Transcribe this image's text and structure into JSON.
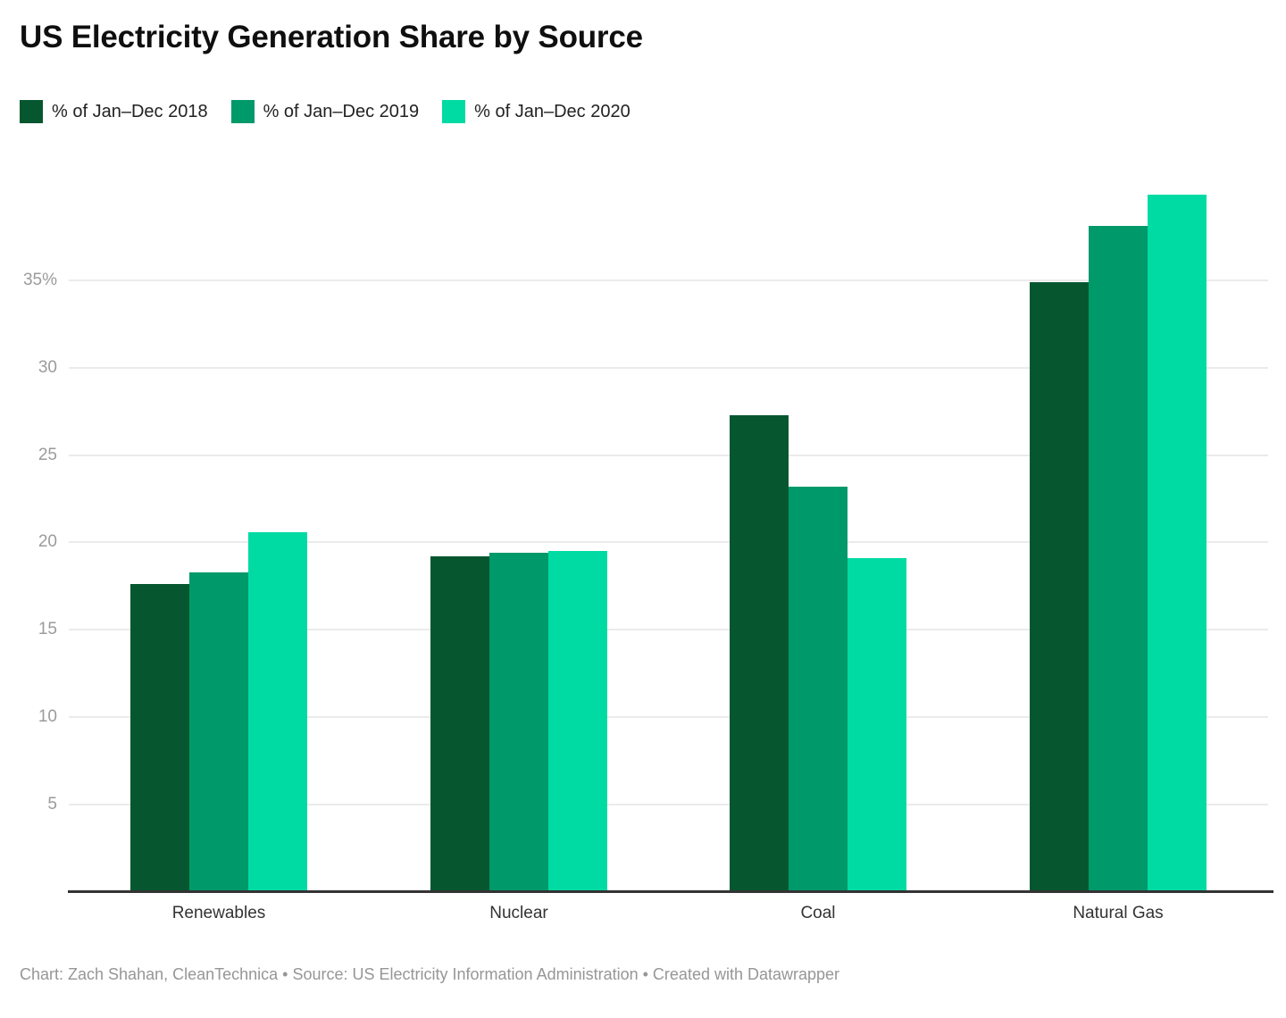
{
  "page": {
    "title": "US Electricity Generation Share by Source",
    "footer": "Chart: Zach Shahan, CleanTechnica • Source: US Electricity Information Administration • Created with Datawrapper"
  },
  "legend": {
    "items": [
      {
        "label": "% of Jan–Dec 2018"
      },
      {
        "label": "% of Jan–Dec 2019"
      },
      {
        "label": "% of Jan–Dec 2020"
      }
    ]
  },
  "chart_data": {
    "type": "bar",
    "title": "US Electricity Generation Share by Source",
    "categories": [
      "Renewables",
      "Nuclear",
      "Coal",
      "Natural Gas"
    ],
    "series": [
      {
        "name": "% of Jan–Dec 2018",
        "year": "2018",
        "color": "#06572f",
        "values": [
          17.6,
          19.2,
          27.3,
          34.9
        ]
      },
      {
        "name": "% of Jan–Dec 2019",
        "year": "2019",
        "color": "#00996a",
        "values": [
          18.3,
          19.4,
          23.2,
          38.1
        ]
      },
      {
        "name": "% of Jan–Dec 2020",
        "year": "2020",
        "color": "#00dba4",
        "values": [
          20.6,
          19.5,
          19.1,
          39.9
        ]
      }
    ],
    "xlabel": "",
    "ylabel": "",
    "unit": "%",
    "ytick_values": [
      5,
      10,
      15,
      20,
      25,
      30,
      35
    ],
    "ytick_labels": [
      "5",
      "10",
      "15",
      "20",
      "25",
      "30",
      "35%"
    ],
    "ylim": [
      0,
      41.8
    ],
    "grid": true,
    "legend_position": "top-left",
    "colors": {
      "axis_line": "#333333",
      "gridline": "#ebebeb",
      "ytick_label": "#9b9b9b",
      "category_label": "#333333",
      "footer_text": "#969696",
      "title_text": "#0f0f0f"
    }
  }
}
